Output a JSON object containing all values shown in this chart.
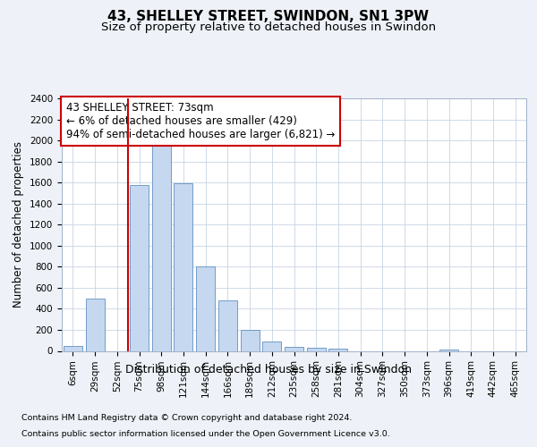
{
  "title": "43, SHELLEY STREET, SWINDON, SN1 3PW",
  "subtitle": "Size of property relative to detached houses in Swindon",
  "xlabel": "Distribution of detached houses by size in Swindon",
  "ylabel": "Number of detached properties",
  "categories": [
    "6sqm",
    "29sqm",
    "52sqm",
    "75sqm",
    "98sqm",
    "121sqm",
    "144sqm",
    "166sqm",
    "189sqm",
    "212sqm",
    "235sqm",
    "258sqm",
    "281sqm",
    "304sqm",
    "327sqm",
    "350sqm",
    "373sqm",
    "396sqm",
    "419sqm",
    "442sqm",
    "465sqm"
  ],
  "values": [
    50,
    500,
    0,
    1580,
    1950,
    1590,
    800,
    480,
    200,
    90,
    40,
    30,
    20,
    0,
    0,
    0,
    0,
    15,
    0,
    0,
    0
  ],
  "bar_color": "#c5d8f0",
  "bar_edgecolor": "#6090c0",
  "vline_position": 2.5,
  "vline_color": "#cc0000",
  "annotation_line1": "43 SHELLEY STREET: 73sqm",
  "annotation_line2": "← 6% of detached houses are smaller (429)",
  "annotation_line3": "94% of semi-detached houses are larger (6,821) →",
  "annotation_box_edgecolor": "#cc0000",
  "ylim": [
    0,
    2400
  ],
  "yticks": [
    0,
    200,
    400,
    600,
    800,
    1000,
    1200,
    1400,
    1600,
    1800,
    2000,
    2200,
    2400
  ],
  "footnote_line1": "Contains HM Land Registry data © Crown copyright and database right 2024.",
  "footnote_line2": "Contains public sector information licensed under the Open Government Licence v3.0.",
  "bg_color": "#eef2f8",
  "plot_bg_color": "#ffffff",
  "title_fontsize": 11,
  "subtitle_fontsize": 9.5,
  "ylabel_fontsize": 8.5,
  "xlabel_fontsize": 9,
  "tick_fontsize": 7.5,
  "annotation_fontsize": 8.5,
  "footnote_fontsize": 6.8
}
